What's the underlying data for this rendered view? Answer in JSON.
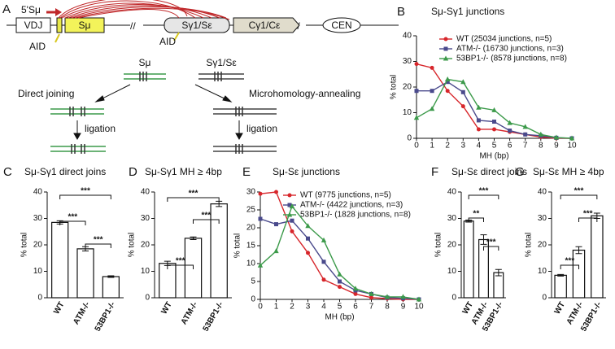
{
  "diagram": {
    "panel": "A",
    "five_prime": "5'Sμ",
    "vdj": "VDJ",
    "s_mu": "Sμ",
    "s_gamma": "Sγ1/Sε",
    "c_gamma": "Cγ1/Cε",
    "cen": "CEN",
    "aid_left": "AID",
    "aid_right": "AID",
    "duplex_left": "Sμ",
    "duplex_right": "Sγ1/Sε",
    "direct": "Direct joining",
    "mh": "Microhomology-annealing",
    "ligation_left": "ligation",
    "ligation_right": "ligation"
  },
  "chart_data": [
    {
      "type": "line",
      "panel": "B",
      "title": "Sμ-Sγ1 junctions",
      "x_label": "MH (bp)",
      "y_label": "% total",
      "x": [
        0,
        1,
        2,
        3,
        4,
        5,
        6,
        7,
        8,
        9,
        10
      ],
      "xlim": [
        0,
        10
      ],
      "xticks": [
        0,
        1,
        2,
        3,
        4,
        5,
        6,
        7,
        8,
        9,
        10
      ],
      "ylim": [
        0,
        40
      ],
      "yticks": [
        0,
        10,
        20,
        30,
        40
      ],
      "series": [
        {
          "name": "WT (25034 junctions, n=5)",
          "color": "#d7262b",
          "marker": "circle",
          "values": [
            29,
            27.5,
            18.5,
            12.5,
            3.5,
            3.5,
            2.5,
            1.5,
            0.5,
            0,
            0
          ]
        },
        {
          "name": "ATM-/- (16730 junctions, n=3)",
          "color": "#4a4a8c",
          "marker": "square",
          "values": [
            18.5,
            18.5,
            22,
            18,
            7,
            6.5,
            3,
            1.5,
            1,
            0.2,
            0
          ]
        },
        {
          "name": "53BP1-/- (8578 junctions, n=8)",
          "color": "#3c9a4a",
          "marker": "triangle",
          "values": [
            8,
            11.5,
            23,
            22,
            12,
            11,
            6,
            4.5,
            1.5,
            0.3,
            0
          ]
        }
      ]
    },
    {
      "type": "bar",
      "panel": "C",
      "title": "Sμ-Sγ1 direct joins",
      "y_label": "% total",
      "categories": [
        "WT",
        "ATM-/-",
        "53BP1-/-"
      ],
      "values": [
        28.5,
        18.5,
        8
      ],
      "errors": [
        0.6,
        0.8,
        0.3
      ],
      "ylim": [
        0,
        40
      ],
      "yticks": [
        0,
        10,
        20,
        30,
        40
      ],
      "annotations": [
        "***",
        "***",
        "***"
      ]
    },
    {
      "type": "bar",
      "panel": "D",
      "title": "Sμ-Sγ1 MH ≥ 4bp",
      "y_label": "% total",
      "categories": [
        "WT",
        "ATM-/-",
        "53BP1-/-"
      ],
      "values": [
        13,
        22.5,
        35.5
      ],
      "errors": [
        0.8,
        0.5,
        1
      ],
      "ylim": [
        0,
        40
      ],
      "yticks": [
        0,
        10,
        20,
        30,
        40
      ],
      "annotations": [
        "***",
        "***",
        "***"
      ]
    },
    {
      "type": "line",
      "panel": "E",
      "title": "Sμ-Sε junctions",
      "x_label": "MH (bp)",
      "y_label": "% total",
      "x": [
        0,
        1,
        2,
        3,
        4,
        5,
        6,
        7,
        8,
        9,
        10
      ],
      "xlim": [
        0,
        10
      ],
      "xticks": [
        0,
        1,
        2,
        3,
        4,
        5,
        6,
        7,
        8,
        9,
        10
      ],
      "ylim": [
        0,
        30
      ],
      "yticks": [
        0,
        5,
        10,
        15,
        20,
        25,
        30
      ],
      "series": [
        {
          "name": "WT (9775 junctions, n=5)",
          "color": "#d7262b",
          "marker": "circle",
          "values": [
            29.5,
            30,
            19,
            13,
            5.5,
            3.5,
            1.5,
            0.5,
            0.2,
            0,
            0
          ]
        },
        {
          "name": "ATM-/- (4422 junctions, n=3)",
          "color": "#4a4a8c",
          "marker": "square",
          "values": [
            22.5,
            21,
            22,
            17,
            10.5,
            5,
            2.5,
            1.5,
            0.5,
            0.3,
            0
          ]
        },
        {
          "name": "53BP1-/- (1828 junctions, n=8)",
          "color": "#3c9a4a",
          "marker": "triangle",
          "values": [
            9.5,
            13.5,
            26,
            20.5,
            16.5,
            7,
            3,
            1.5,
            0.7,
            0.7,
            0
          ]
        }
      ]
    },
    {
      "type": "bar",
      "panel": "F",
      "title": "Sμ-Sε direct joins",
      "y_label": "% total",
      "categories": [
        "WT",
        "ATM-/-",
        "53BP1-/-"
      ],
      "values": [
        29,
        22,
        9.5
      ],
      "errors": [
        0.4,
        1.8,
        1.2
      ],
      "ylim": [
        0,
        40
      ],
      "yticks": [
        0,
        10,
        20,
        30,
        40
      ],
      "annotations": [
        "**",
        "***",
        "***"
      ]
    },
    {
      "type": "bar",
      "panel": "G",
      "title": "Sμ-Sε MH ≥ 4bp",
      "y_label": "% total",
      "categories": [
        "WT",
        "ATM-/-",
        "53BP1-/-"
      ],
      "values": [
        8.5,
        18,
        31
      ],
      "errors": [
        0.3,
        1.3,
        1
      ],
      "ylim": [
        0,
        40
      ],
      "yticks": [
        0,
        10,
        20,
        30,
        40
      ],
      "annotations": [
        "***",
        "***",
        "***"
      ]
    }
  ]
}
